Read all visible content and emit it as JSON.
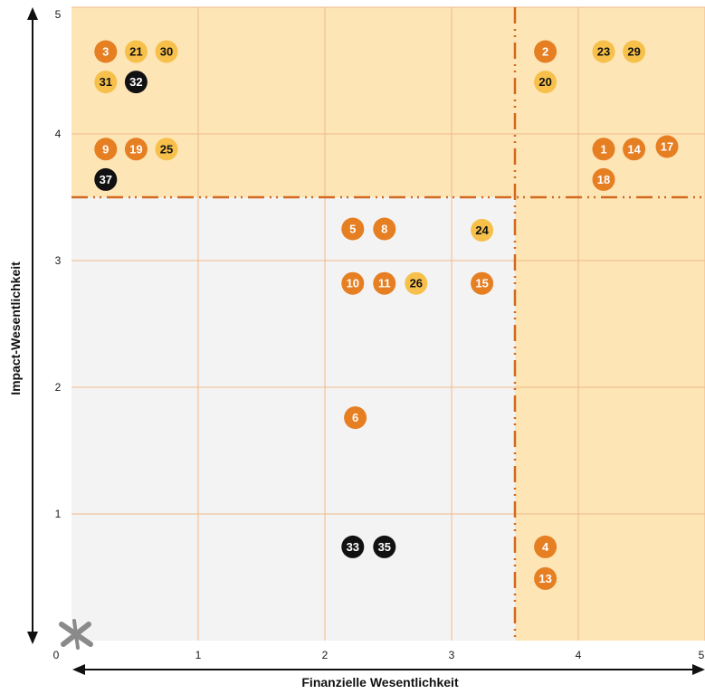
{
  "chart_data": {
    "type": "scatter",
    "title": "",
    "xlabel": "Finanzielle Wesentlichkeit",
    "ylabel": "Impact-Wesentlichkeit",
    "xlim": [
      0,
      5
    ],
    "ylim": [
      0,
      5
    ],
    "x_ticks": [
      "0",
      "1",
      "2",
      "3",
      "4",
      "5"
    ],
    "y_ticks": [
      "1",
      "2",
      "3",
      "4",
      "5"
    ],
    "grid": true,
    "threshold": {
      "x": 3.5,
      "y": 3.5
    },
    "colors": {
      "orange": "#e67e22",
      "yellow": "#f7c04a",
      "black": "#111111",
      "highlight_zone": "#fde5b5",
      "neutral_zone": "#f3f3f3",
      "threshold_line": "#d2691e",
      "grid": "#f0b98a",
      "logo": "#8a8a8a"
    },
    "points": [
      {
        "label": "3",
        "x": 0.27,
        "y": 4.65,
        "color": "orange"
      },
      {
        "label": "21",
        "x": 0.51,
        "y": 4.65,
        "color": "yellow"
      },
      {
        "label": "30",
        "x": 0.75,
        "y": 4.65,
        "color": "yellow"
      },
      {
        "label": "31",
        "x": 0.27,
        "y": 4.41,
        "color": "yellow"
      },
      {
        "label": "32",
        "x": 0.51,
        "y": 4.41,
        "color": "black"
      },
      {
        "label": "9",
        "x": 0.27,
        "y": 3.88,
        "color": "orange"
      },
      {
        "label": "19",
        "x": 0.51,
        "y": 3.88,
        "color": "orange"
      },
      {
        "label": "25",
        "x": 0.75,
        "y": 3.88,
        "color": "yellow"
      },
      {
        "label": "37",
        "x": 0.27,
        "y": 3.64,
        "color": "black"
      },
      {
        "label": "2",
        "x": 3.74,
        "y": 4.65,
        "color": "orange"
      },
      {
        "label": "20",
        "x": 3.74,
        "y": 4.41,
        "color": "yellow"
      },
      {
        "label": "23",
        "x": 4.2,
        "y": 4.65,
        "color": "yellow"
      },
      {
        "label": "29",
        "x": 4.44,
        "y": 4.65,
        "color": "yellow"
      },
      {
        "label": "1",
        "x": 4.2,
        "y": 3.88,
        "color": "orange"
      },
      {
        "label": "14",
        "x": 4.44,
        "y": 3.88,
        "color": "orange"
      },
      {
        "label": "17",
        "x": 4.7,
        "y": 3.9,
        "color": "orange"
      },
      {
        "label": "18",
        "x": 4.2,
        "y": 3.64,
        "color": "orange"
      },
      {
        "label": "5",
        "x": 2.22,
        "y": 3.25,
        "color": "orange"
      },
      {
        "label": "8",
        "x": 2.47,
        "y": 3.25,
        "color": "orange"
      },
      {
        "label": "24",
        "x": 3.24,
        "y": 3.24,
        "color": "yellow"
      },
      {
        "label": "10",
        "x": 2.22,
        "y": 2.82,
        "color": "orange"
      },
      {
        "label": "11",
        "x": 2.47,
        "y": 2.82,
        "color": "orange"
      },
      {
        "label": "26",
        "x": 2.72,
        "y": 2.82,
        "color": "yellow"
      },
      {
        "label": "15",
        "x": 3.24,
        "y": 2.82,
        "color": "orange"
      },
      {
        "label": "6",
        "x": 2.24,
        "y": 1.76,
        "color": "orange"
      },
      {
        "label": "33",
        "x": 2.22,
        "y": 0.74,
        "color": "black"
      },
      {
        "label": "35",
        "x": 2.47,
        "y": 0.74,
        "color": "black"
      },
      {
        "label": "4",
        "x": 3.74,
        "y": 0.74,
        "color": "orange"
      },
      {
        "label": "13",
        "x": 3.74,
        "y": 0.49,
        "color": "orange"
      }
    ]
  }
}
